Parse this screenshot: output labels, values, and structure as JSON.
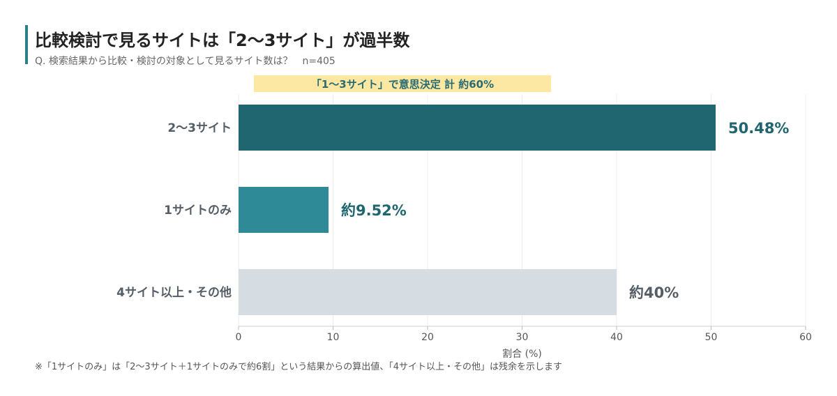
{
  "title": "比較検討で見るサイトは「2〜3サイト」が過半数",
  "subtitle": "Q. 検索結果から比較・検討の対象として見るサイト数は？　n=405",
  "footnote": "※「1サイトのみ」は「2〜3サイト＋1サイトのみで約6割」という結果からの算出値、「4サイト以上・その他」は残余を示します",
  "colors": {
    "accent": "#2b7f8b",
    "highlight_bg": "#fde8a3",
    "highlight_text": "#2a6b72"
  },
  "chart_data": {
    "type": "bar",
    "orientation": "horizontal",
    "categories": [
      "2〜3サイト",
      "1サイトのみ",
      "4サイト以上・その他"
    ],
    "values": [
      50.48,
      9.52,
      40
    ],
    "value_labels": [
      "50.48%",
      "約9.52%",
      "約40%"
    ],
    "bar_colors": [
      "#1f6670",
      "#2e8a97",
      "#d5dde3"
    ],
    "label_colors": [
      "#1f6670",
      "#1f6670",
      "#555e66"
    ],
    "xlabel": "割合 (%)",
    "ylabel": "",
    "xlim": [
      0,
      60
    ],
    "xticks": [
      0,
      10,
      20,
      30,
      40,
      50,
      60
    ],
    "grid": true,
    "annotation": "「1〜3サイト」で意思決定 計 約60%",
    "annotation_range": [
      0,
      60
    ]
  }
}
